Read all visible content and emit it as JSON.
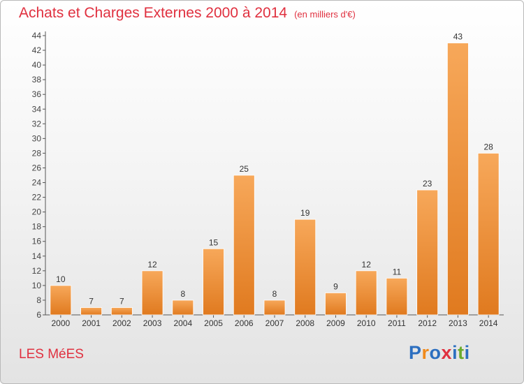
{
  "header": {
    "title": "Achats et Charges Externes 2000 à 2014",
    "subtitle": "(en milliers d'€)"
  },
  "footer": {
    "commune": "LES MéES",
    "logo": "Proxiti"
  },
  "colors": {
    "title": "#e0303f",
    "bar_light": "#f7a85a",
    "bar_dark": "#e07a1f",
    "logo_letters": [
      "#2c6fc0",
      "#f08a1c",
      "#2c6fc0",
      "#e0303f",
      "#2c6fc0",
      "#6aab2e",
      "#2c6fc0"
    ]
  },
  "chart_data": {
    "type": "bar",
    "categories": [
      "2000",
      "2001",
      "2002",
      "2003",
      "2004",
      "2005",
      "2006",
      "2007",
      "2008",
      "2009",
      "2010",
      "2011",
      "2012",
      "2013",
      "2014"
    ],
    "values": [
      10,
      7,
      7,
      12,
      8,
      15,
      25,
      8,
      19,
      9,
      12,
      11,
      23,
      43,
      28
    ],
    "ylim": [
      6,
      44
    ],
    "yticks": [
      6,
      8,
      10,
      12,
      14,
      16,
      18,
      20,
      22,
      24,
      26,
      28,
      30,
      32,
      34,
      36,
      38,
      40,
      42,
      44
    ],
    "grid": false
  }
}
